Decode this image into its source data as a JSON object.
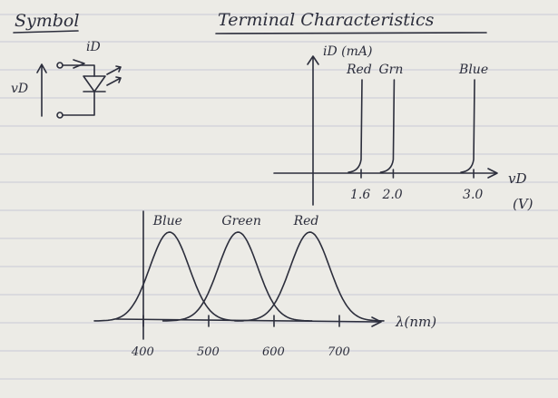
{
  "titles": {
    "symbol": "Symbol",
    "terminal": "Terminal Characteristics"
  },
  "symbol": {
    "current_label": "iD",
    "voltage_label": "vD"
  },
  "iv_chart": {
    "ylabel": "iD (mA)",
    "xlabel": "vD",
    "xunit": "(V)",
    "curves": [
      {
        "name": "Red",
        "label": "Red",
        "knee_v": 1.6,
        "tick_label": "1.6"
      },
      {
        "name": "Green",
        "label": "Grn",
        "knee_v": 2.0,
        "tick_label": "2.0"
      },
      {
        "name": "Blue",
        "label": "Blue",
        "knee_v": 3.0,
        "tick_label": "3.0"
      }
    ]
  },
  "chart_data": {
    "type": "line",
    "xlabel": "λ(nm)",
    "ylabel": "",
    "xlim": [
      380,
      740
    ],
    "x_ticks": [
      400,
      500,
      600,
      700
    ],
    "x_tick_labels": [
      "400",
      "500",
      "600",
      "700"
    ],
    "series": [
      {
        "name": "Blue",
        "label": "Blue",
        "peak_nm": 440
      },
      {
        "name": "Green",
        "label": "Green",
        "peak_nm": 545
      },
      {
        "name": "Red",
        "label": "Red",
        "peak_nm": 655
      }
    ]
  }
}
